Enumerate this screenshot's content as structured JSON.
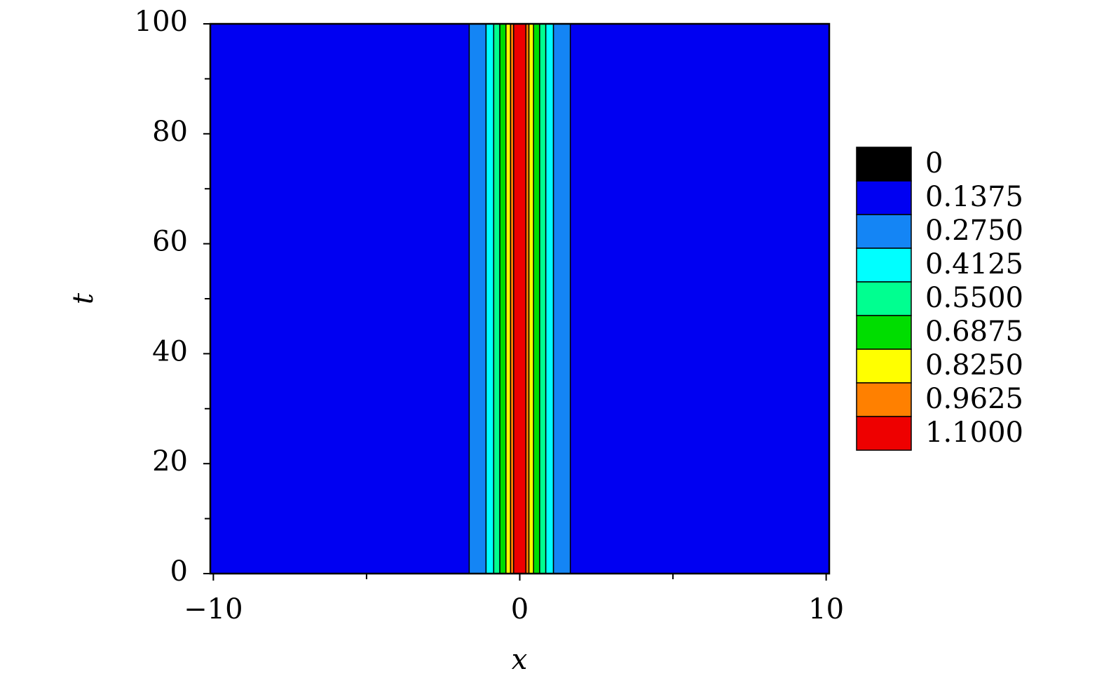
{
  "chart_data": {
    "type": "contour",
    "x_label": "x",
    "y_label": "t",
    "xlim": [
      -10.1,
      10.1
    ],
    "ylim": [
      0,
      100
    ],
    "xticks": [
      {
        "value": -10,
        "label": "−10"
      },
      0,
      10
    ],
    "xminor": [
      -5,
      5
    ],
    "yticks": [
      0,
      20,
      40,
      60,
      80,
      100
    ],
    "yminor": [
      10,
      30,
      50,
      70,
      90
    ],
    "background_level": 0.1375,
    "bands": [
      {
        "x0": -1.65,
        "x1": -1.1,
        "level": 0.275
      },
      {
        "x0": -1.1,
        "x1": -0.85,
        "level": 0.4125
      },
      {
        "x0": -0.85,
        "x1": -0.65,
        "level": 0.55
      },
      {
        "x0": -0.65,
        "x1": -0.45,
        "level": 0.6875
      },
      {
        "x0": -0.45,
        "x1": -0.3,
        "level": 0.825
      },
      {
        "x0": -0.3,
        "x1": -0.2,
        "level": 0.9625
      },
      {
        "x0": -0.2,
        "x1": 0.2,
        "level": 1.1
      },
      {
        "x0": 0.2,
        "x1": 0.3,
        "level": 0.9625
      },
      {
        "x0": 0.3,
        "x1": 0.45,
        "level": 0.825
      },
      {
        "x0": 0.45,
        "x1": 0.65,
        "level": 0.6875
      },
      {
        "x0": 0.65,
        "x1": 0.85,
        "level": 0.55
      },
      {
        "x0": 0.85,
        "x1": 1.1,
        "level": 0.4125
      },
      {
        "x0": 1.1,
        "x1": 1.65,
        "level": 0.275
      }
    ],
    "levels": [
      0,
      {
        "value": 0.1375,
        "label": "0.1375"
      },
      {
        "value": 0.275,
        "label": "0.2750"
      },
      {
        "value": 0.4125,
        "label": "0.4125"
      },
      {
        "value": 0.55,
        "label": "0.5500"
      },
      {
        "value": 0.6875,
        "label": "0.6875"
      },
      {
        "value": 0.825,
        "label": "0.8250"
      },
      {
        "value": 0.9625,
        "label": "0.9625"
      },
      {
        "value": 1.1,
        "label": "1.1000"
      }
    ],
    "level_colors": [
      "#000000",
      "#0000f2",
      "#1485f5",
      "#00ffff",
      "#00ff90",
      "#00dd00",
      "#ffff00",
      "#ff8000",
      "#ee0000"
    ]
  }
}
